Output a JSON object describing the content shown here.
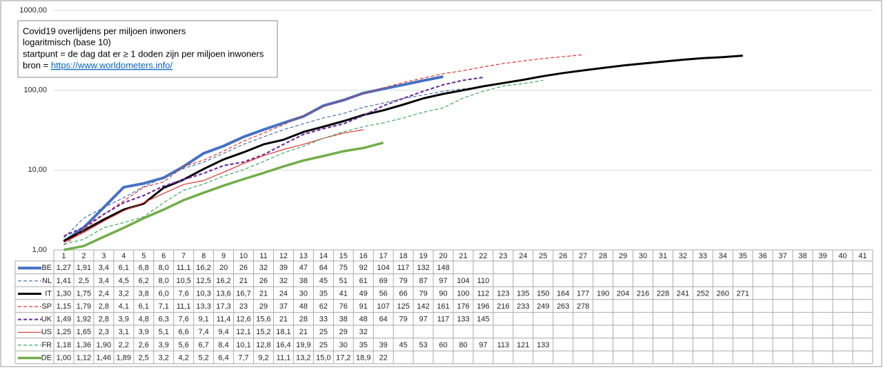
{
  "chart_data": {
    "type": "line",
    "log_scale": true,
    "grid": true,
    "annotation": {
      "title": "Covid19 overlijdens per miljoen inwoners",
      "scale_note": "logaritmisch (base 10)",
      "start_note": "startpunt = de dag dat er ≥ 1 doden zijn per miljoen inwoners",
      "source_label": "bron =",
      "source_url": "https://www.worldometers.info/"
    },
    "categories": [
      1,
      2,
      3,
      4,
      5,
      6,
      7,
      8,
      9,
      10,
      11,
      12,
      13,
      14,
      15,
      16,
      17,
      18,
      19,
      20,
      21,
      22,
      23,
      24,
      25,
      26,
      27,
      28,
      29,
      30,
      31,
      32,
      33,
      34,
      35,
      36,
      37,
      38,
      39,
      40,
      41
    ],
    "ylim": [
      1,
      1000
    ],
    "yticks": [
      {
        "value": 1,
        "label": "1,00"
      },
      {
        "value": 10,
        "label": "10,00"
      },
      {
        "value": 100,
        "label": "100,00"
      },
      {
        "value": 1000,
        "label": "1000,00"
      }
    ],
    "series": [
      {
        "name": "BE",
        "color": "#4472c4",
        "dashed": false,
        "line_width": 4,
        "values": [
          1.27,
          1.91,
          3.4,
          6.1,
          6.8,
          8.0,
          11.1,
          16.2,
          20,
          26,
          32,
          39,
          47,
          64,
          75,
          92,
          104,
          117,
          132,
          148,
          null,
          null,
          null,
          null,
          null,
          null,
          null,
          null,
          null,
          null,
          null,
          null,
          null,
          null,
          null,
          null,
          null,
          null,
          null,
          null,
          null
        ],
        "value_labels": [
          "1,27",
          "1,91",
          "3,4",
          "6,1",
          "6,8",
          "8,0",
          "11,1",
          "16,2",
          "20",
          "26",
          "32",
          "39",
          "47",
          "64",
          "75",
          "92",
          "104",
          "117",
          "132",
          "148",
          null,
          null,
          null,
          null,
          null,
          null,
          null,
          null,
          null,
          null,
          null,
          null,
          null,
          null,
          null,
          null,
          null,
          null,
          null,
          null,
          null
        ]
      },
      {
        "name": "NL",
        "color": "#4a6fb5",
        "dashed": true,
        "line_width": 1.2,
        "values": [
          1.41,
          2.5,
          3.4,
          4.5,
          6.2,
          8.0,
          10.5,
          12.5,
          16.2,
          21,
          26,
          32,
          38,
          45,
          51,
          61,
          69,
          79,
          87,
          97,
          104,
          110,
          null,
          null,
          null,
          null,
          null,
          null,
          null,
          null,
          null,
          null,
          null,
          null,
          null,
          null,
          null,
          null,
          null,
          null,
          null
        ],
        "value_labels": [
          "1,41",
          "2,5",
          "3,4",
          "4,5",
          "6,2",
          "8,0",
          "10,5",
          "12,5",
          "16,2",
          "21",
          "26",
          "32",
          "38",
          "45",
          "51",
          "61",
          "69",
          "79",
          "87",
          "97",
          "104",
          "110",
          null,
          null,
          null,
          null,
          null,
          null,
          null,
          null,
          null,
          null,
          null,
          null,
          null,
          null,
          null,
          null,
          null,
          null,
          null
        ]
      },
      {
        "name": "IT",
        "color": "#000000",
        "dashed": false,
        "line_width": 3,
        "values": [
          1.3,
          1.75,
          2.4,
          3.2,
          3.8,
          6.0,
          7.6,
          10.3,
          13.6,
          16.7,
          21,
          24,
          30,
          35,
          41,
          49,
          56,
          66,
          79,
          90,
          100,
          112,
          123,
          135,
          150,
          164,
          177,
          190,
          204,
          216,
          228,
          241,
          252,
          260,
          271,
          null,
          null,
          null,
          null,
          null,
          null
        ],
        "value_labels": [
          "1,30",
          "1,75",
          "2,4",
          "3,2",
          "3,8",
          "6,0",
          "7,6",
          "10,3",
          "13,6",
          "16,7",
          "21",
          "24",
          "30",
          "35",
          "41",
          "49",
          "56",
          "66",
          "79",
          "90",
          "100",
          "112",
          "123",
          "135",
          "150",
          "164",
          "177",
          "190",
          "204",
          "216",
          "228",
          "241",
          "252",
          "260",
          "271",
          null,
          null,
          null,
          null,
          null,
          null
        ]
      },
      {
        "name": "SP",
        "color": "#e0302a",
        "dashed": true,
        "line_width": 1.2,
        "values": [
          1.15,
          1.79,
          2.8,
          4.1,
          6.1,
          7.1,
          11.1,
          13.3,
          17.3,
          23,
          29,
          37,
          48,
          62,
          76,
          91,
          107,
          125,
          142,
          161,
          176,
          196,
          216,
          233,
          249,
          263,
          278,
          null,
          null,
          null,
          null,
          null,
          null,
          null,
          null,
          null,
          null,
          null,
          null,
          null,
          null
        ],
        "value_labels": [
          "1,15",
          "1,79",
          "2,8",
          "4,1",
          "6,1",
          "7,1",
          "11,1",
          "13,3",
          "17,3",
          "23",
          "29",
          "37",
          "48",
          "62",
          "76",
          "91",
          "107",
          "125",
          "142",
          "161",
          "176",
          "196",
          "216",
          "233",
          "249",
          "263",
          "278",
          null,
          null,
          null,
          null,
          null,
          null,
          null,
          null,
          null,
          null,
          null,
          null,
          null,
          null
        ]
      },
      {
        "name": "UK",
        "color": "#7030a0",
        "dashed": true,
        "line_width": 2.2,
        "values": [
          1.49,
          1.92,
          2.8,
          3.9,
          4.8,
          6.3,
          7.6,
          9.1,
          11.4,
          12.6,
          15.6,
          21,
          28,
          33,
          38,
          48,
          64,
          79,
          97,
          117,
          133,
          145,
          null,
          null,
          null,
          null,
          null,
          null,
          null,
          null,
          null,
          null,
          null,
          null,
          null,
          null,
          null,
          null,
          null,
          null,
          null
        ],
        "value_labels": [
          "1,49",
          "1,92",
          "2,8",
          "3,9",
          "4,8",
          "6,3",
          "7,6",
          "9,1",
          "11,4",
          "12,6",
          "15,6",
          "21",
          "28",
          "33",
          "38",
          "48",
          "64",
          "79",
          "97",
          "117",
          "133",
          "145",
          null,
          null,
          null,
          null,
          null,
          null,
          null,
          null,
          null,
          null,
          null,
          null,
          null,
          null,
          null,
          null,
          null,
          null,
          null
        ]
      },
      {
        "name": "US",
        "color": "#e03030",
        "dashed": false,
        "line_width": 1.2,
        "values": [
          1.25,
          1.65,
          2.3,
          3.1,
          3.9,
          5.1,
          6.6,
          7.4,
          9.4,
          12.1,
          15.2,
          18.1,
          21,
          25,
          29,
          32,
          null,
          null,
          null,
          null,
          null,
          null,
          null,
          null,
          null,
          null,
          null,
          null,
          null,
          null,
          null,
          null,
          null,
          null,
          null,
          null,
          null,
          null,
          null,
          null,
          null
        ],
        "value_labels": [
          "1,25",
          "1,65",
          "2,3",
          "3,1",
          "3,9",
          "5,1",
          "6,6",
          "7,4",
          "9,4",
          "12,1",
          "15,2",
          "18,1",
          "21",
          "25",
          "29",
          "32",
          null,
          null,
          null,
          null,
          null,
          null,
          null,
          null,
          null,
          null,
          null,
          null,
          null,
          null,
          null,
          null,
          null,
          null,
          null,
          null,
          null,
          null,
          null,
          null,
          null
        ]
      },
      {
        "name": "FR",
        "color": "#3aa860",
        "dashed": true,
        "line_width": 1.2,
        "values": [
          1.18,
          1.36,
          1.9,
          2.2,
          2.6,
          3.9,
          5.6,
          6.7,
          8.4,
          10.1,
          12.8,
          16.4,
          19.9,
          25,
          30,
          35,
          39,
          45,
          53,
          60,
          80,
          97,
          113,
          121,
          133,
          null,
          null,
          null,
          null,
          null,
          null,
          null,
          null,
          null,
          null,
          null,
          null,
          null,
          null,
          null,
          null
        ],
        "value_labels": [
          "1,18",
          "1,36",
          "1,90",
          "2,2",
          "2,6",
          "3,9",
          "5,6",
          "6,7",
          "8,4",
          "10,1",
          "12,8",
          "16,4",
          "19,9",
          "25",
          "30",
          "35",
          "39",
          "45",
          "53",
          "60",
          "80",
          "97",
          "113",
          "121",
          "133",
          null,
          null,
          null,
          null,
          null,
          null,
          null,
          null,
          null,
          null,
          null,
          null,
          null,
          null,
          null,
          null
        ]
      },
      {
        "name": "DE",
        "color": "#70ad47",
        "dashed": false,
        "line_width": 3.5,
        "values": [
          1.0,
          1.12,
          1.46,
          1.89,
          2.5,
          3.2,
          4.2,
          5.2,
          6.4,
          7.7,
          9.2,
          11.1,
          13.2,
          15.0,
          17.2,
          18.9,
          22,
          null,
          null,
          null,
          null,
          null,
          null,
          null,
          null,
          null,
          null,
          null,
          null,
          null,
          null,
          null,
          null,
          null,
          null,
          null,
          null,
          null,
          null,
          null,
          null
        ],
        "value_labels": [
          "1,00",
          "1,12",
          "1,46",
          "1,89",
          "2,5",
          "3,2",
          "4,2",
          "5,2",
          "6,4",
          "7,7",
          "9,2",
          "11,1",
          "13,2",
          "15,0",
          "17,2",
          "18,9",
          "22",
          null,
          null,
          null,
          null,
          null,
          null,
          null,
          null,
          null,
          null,
          null,
          null,
          null,
          null,
          null,
          null,
          null,
          null,
          null,
          null,
          null,
          null,
          null,
          null
        ]
      }
    ]
  }
}
